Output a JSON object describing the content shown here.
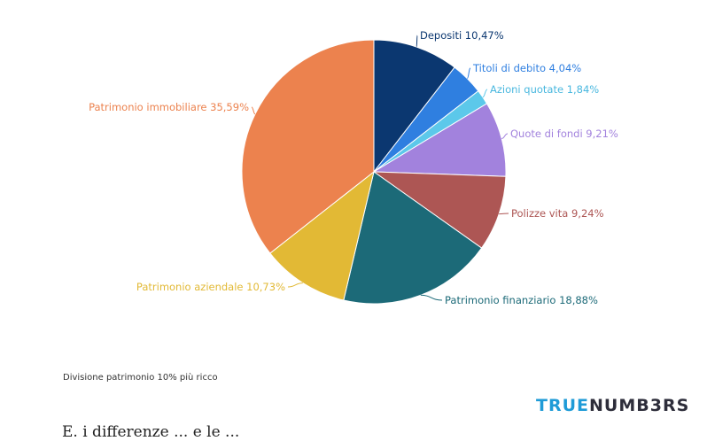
{
  "chart_data": {
    "type": "pie",
    "slices": [
      {
        "label": "Depositi",
        "value": 10.47,
        "display": "Depositi 10,47%",
        "color": "#0b3770"
      },
      {
        "label": "Titoli di debito",
        "value": 4.04,
        "display": "Titoli di debito 4,04%",
        "color": "#2f7fe0"
      },
      {
        "label": "Azioni quotate",
        "value": 1.84,
        "display": "Azioni quotate 1,84%",
        "color": "#5cc8ea"
      },
      {
        "label": "Quote di fondi",
        "value": 9.21,
        "display": "Quote di fondi 9,21%",
        "color": "#a282dd"
      },
      {
        "label": "Polizze vita",
        "value": 9.24,
        "display": "Polizze vita 9,24%",
        "color": "#ad5654"
      },
      {
        "label": "Patrimonio finanziario",
        "value": 18.88,
        "display": "Patrimonio finanziario 18,88%",
        "color": "#1c6a78"
      },
      {
        "label": "Patrimonio aziendale",
        "value": 10.73,
        "display": "Patrimonio aziendale 10,73%",
        "color": "#e2b935"
      },
      {
        "label": "Patrimonio immobiliare",
        "value": 35.59,
        "display": "Patrimonio immobiliare 35,59%",
        "color": "#ec824e"
      }
    ]
  },
  "caption": "Divisione patrimonio 10% più ricco",
  "brand": {
    "part1": "TRUE",
    "part2": "NUMB3RS"
  },
  "article_fragment": "E. i differenze ... e le ..."
}
